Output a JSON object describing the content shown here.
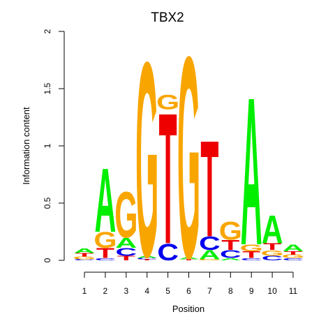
{
  "chart_data": {
    "type": "sequence-logo",
    "title": "TBX2",
    "xlabel": "Position",
    "ylabel": "Information content",
    "ylim": [
      0,
      2
    ],
    "y_ticks": [
      "0",
      "0.5",
      "1",
      "1.5",
      "2"
    ],
    "x_ticks": [
      "1",
      "2",
      "3",
      "4",
      "5",
      "6",
      "7",
      "8",
      "9",
      "10",
      "11"
    ],
    "colors": {
      "A": "#00ee00",
      "C": "#0000ee",
      "G": "#f9a500",
      "T": "#ee0000"
    },
    "positions": [
      {
        "pos": "1",
        "letters": [
          {
            "base": "C",
            "bits": 0.01
          },
          {
            "base": "G",
            "bits": 0.025
          },
          {
            "base": "T",
            "bits": 0.03
          },
          {
            "base": "A",
            "bits": 0.04
          }
        ]
      },
      {
        "pos": "2",
        "letters": [
          {
            "base": "C",
            "bits": 0.02
          },
          {
            "base": "T",
            "bits": 0.09
          },
          {
            "base": "G",
            "bits": 0.14
          },
          {
            "base": "A",
            "bits": 0.57
          }
        ]
      },
      {
        "pos": "3",
        "letters": [
          {
            "base": "T",
            "bits": 0.04
          },
          {
            "base": "C",
            "bits": 0.07
          },
          {
            "base": "A",
            "bits": 0.09
          },
          {
            "base": "G",
            "bits": 0.41
          }
        ]
      },
      {
        "pos": "4",
        "letters": [
          {
            "base": "T",
            "bits": 0.01
          },
          {
            "base": "C",
            "bits": 0.01
          },
          {
            "base": "A",
            "bits": 0.02
          },
          {
            "base": "G",
            "bits": 1.74
          }
        ]
      },
      {
        "pos": "5",
        "letters": [
          {
            "base": "C",
            "bits": 0.15
          },
          {
            "base": "T",
            "bits": 1.17
          },
          {
            "base": "G",
            "bits": 0.13
          }
        ]
      },
      {
        "pos": "6",
        "letters": [
          {
            "base": "T",
            "bits": 0.01
          },
          {
            "base": "A",
            "bits": 0.02
          },
          {
            "base": "G",
            "bits": 1.8
          }
        ]
      },
      {
        "pos": "7",
        "letters": [
          {
            "base": "G",
            "bits": 0.01
          },
          {
            "base": "A",
            "bits": 0.08
          },
          {
            "base": "C",
            "bits": 0.12
          },
          {
            "base": "T",
            "bits": 0.86
          }
        ]
      },
      {
        "pos": "8",
        "letters": [
          {
            "base": "A",
            "bits": 0.02
          },
          {
            "base": "C",
            "bits": 0.07
          },
          {
            "base": "T",
            "bits": 0.09
          },
          {
            "base": "G",
            "bits": 0.16
          }
        ]
      },
      {
        "pos": "9",
        "letters": [
          {
            "base": "C",
            "bits": 0.02
          },
          {
            "base": "T",
            "bits": 0.06
          },
          {
            "base": "G",
            "bits": 0.06
          },
          {
            "base": "A",
            "bits": 1.32
          }
        ]
      },
      {
        "pos": "10",
        "letters": [
          {
            "base": "C",
            "bits": 0.04
          },
          {
            "base": "G",
            "bits": 0.05
          },
          {
            "base": "T",
            "bits": 0.06
          },
          {
            "base": "A",
            "bits": 0.25
          }
        ]
      },
      {
        "pos": "11",
        "letters": [
          {
            "base": "C",
            "bits": 0.02
          },
          {
            "base": "G",
            "bits": 0.03
          },
          {
            "base": "T",
            "bits": 0.03
          },
          {
            "base": "A",
            "bits": 0.06
          }
        ]
      }
    ]
  }
}
